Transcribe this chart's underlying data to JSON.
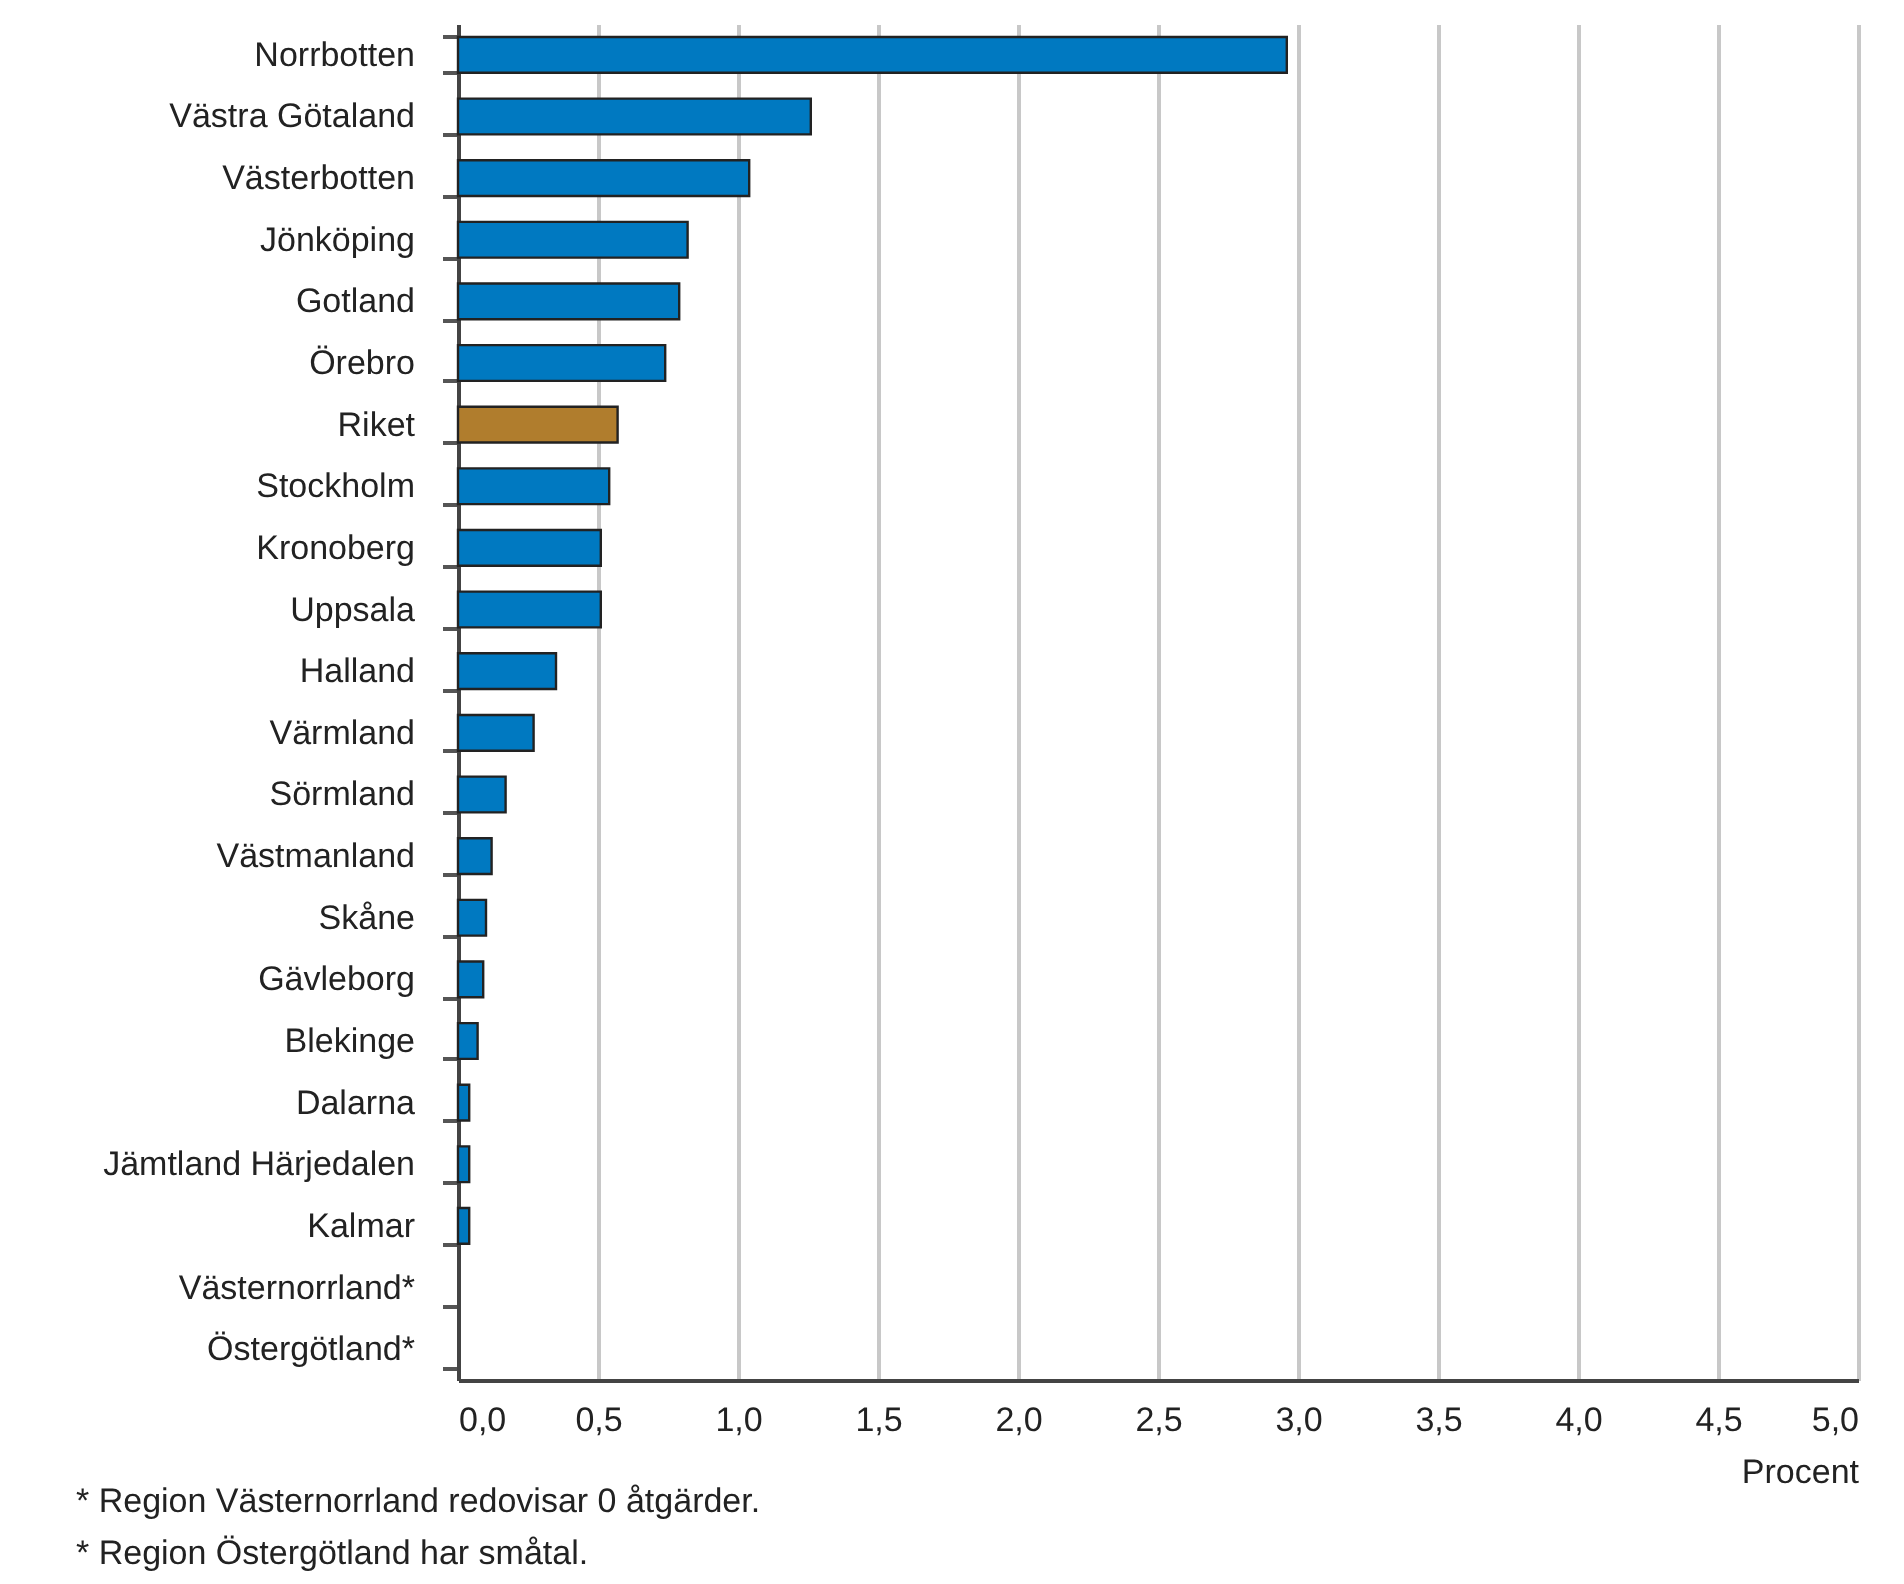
{
  "chart_data": {
    "type": "bar",
    "orientation": "horizontal",
    "categories": [
      "Norrbotten",
      "Västra Götaland",
      "Västerbotten",
      "Jönköping",
      "Gotland",
      "Örebro",
      "Riket",
      "Stockholm",
      "Kronoberg",
      "Uppsala",
      "Halland",
      "Värmland",
      "Sörmland",
      "Västmanland",
      "Skåne",
      "Gävleborg",
      "Blekinge",
      "Dalarna",
      "Jämtland Härjedalen",
      "Kalmar",
      "Västernorrland*",
      "Östergötland*"
    ],
    "values": [
      2.96,
      1.26,
      1.04,
      0.82,
      0.79,
      0.74,
      0.57,
      0.54,
      0.51,
      0.51,
      0.35,
      0.27,
      0.17,
      0.12,
      0.1,
      0.09,
      0.07,
      0.04,
      0.04,
      0.04,
      0,
      0
    ],
    "colors": [
      "#0079c1",
      "#0079c1",
      "#0079c1",
      "#0079c1",
      "#0079c1",
      "#0079c1",
      "#b07d2d",
      "#0079c1",
      "#0079c1",
      "#0079c1",
      "#0079c1",
      "#0079c1",
      "#0079c1",
      "#0079c1",
      "#0079c1",
      "#0079c1",
      "#0079c1",
      "#0079c1",
      "#0079c1",
      "#0079c1",
      "#0079c1",
      "#0079c1"
    ],
    "xlabel": "Procent",
    "xlim": [
      0,
      5
    ],
    "xticks": [
      {
        "value": 0,
        "label": "0,0"
      },
      {
        "value": 0.5,
        "label": "0,5"
      },
      {
        "value": 1,
        "label": "1,0"
      },
      {
        "value": 1.5,
        "label": "1,5"
      },
      {
        "value": 2,
        "label": "2,0"
      },
      {
        "value": 2.5,
        "label": "2,5"
      },
      {
        "value": 3,
        "label": "3,0"
      },
      {
        "value": 3.5,
        "label": "3,5"
      },
      {
        "value": 4,
        "label": "4,0"
      },
      {
        "value": 4.5,
        "label": "4,5"
      },
      {
        "value": 5,
        "label": "5,0"
      }
    ],
    "grid": "x",
    "annotations": [
      "* Region Västernorrland redovisar 0 åtgärder.",
      "* Region Östergötland har småtal."
    ]
  }
}
